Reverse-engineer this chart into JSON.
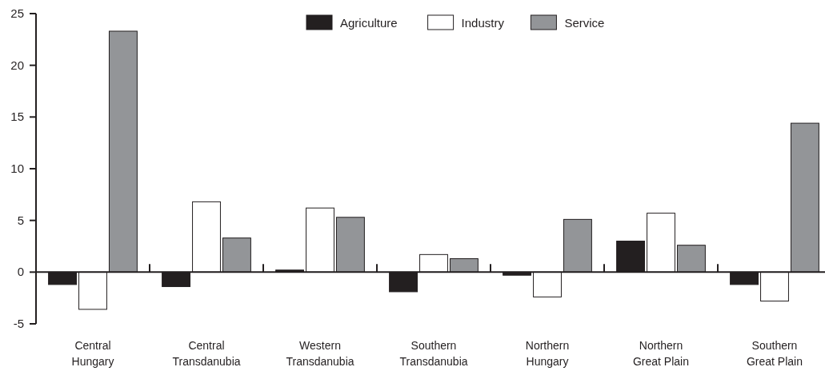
{
  "chart_data": {
    "type": "bar",
    "categories": [
      "Central\nHungary",
      "Central\nTransdanubia",
      "Western\nTransdanubia",
      "Southern\nTransdanubia",
      "Northern\nHungary",
      "Northern\nGreat Plain",
      "Southern\nGreat Plain"
    ],
    "series": [
      {
        "name": "Agriculture",
        "color": "#231f20",
        "values": [
          -1.2,
          -1.4,
          0.2,
          -1.9,
          -0.3,
          3.0,
          -1.2
        ]
      },
      {
        "name": "Industry",
        "color": "#ffffff",
        "values": [
          -3.6,
          6.8,
          6.2,
          1.7,
          -2.4,
          5.7,
          -2.8
        ]
      },
      {
        "name": "Service",
        "color": "#939598",
        "values": [
          23.3,
          3.3,
          5.3,
          1.3,
          5.1,
          2.6,
          14.4
        ]
      }
    ],
    "ref_lines": [
      {
        "axis": "y",
        "value": 0,
        "color": "#231f20"
      }
    ],
    "ylim": [
      -5,
      25
    ],
    "yticks": [
      -5,
      0,
      5,
      10,
      15,
      20,
      25
    ],
    "grid": false,
    "legend": "top"
  }
}
